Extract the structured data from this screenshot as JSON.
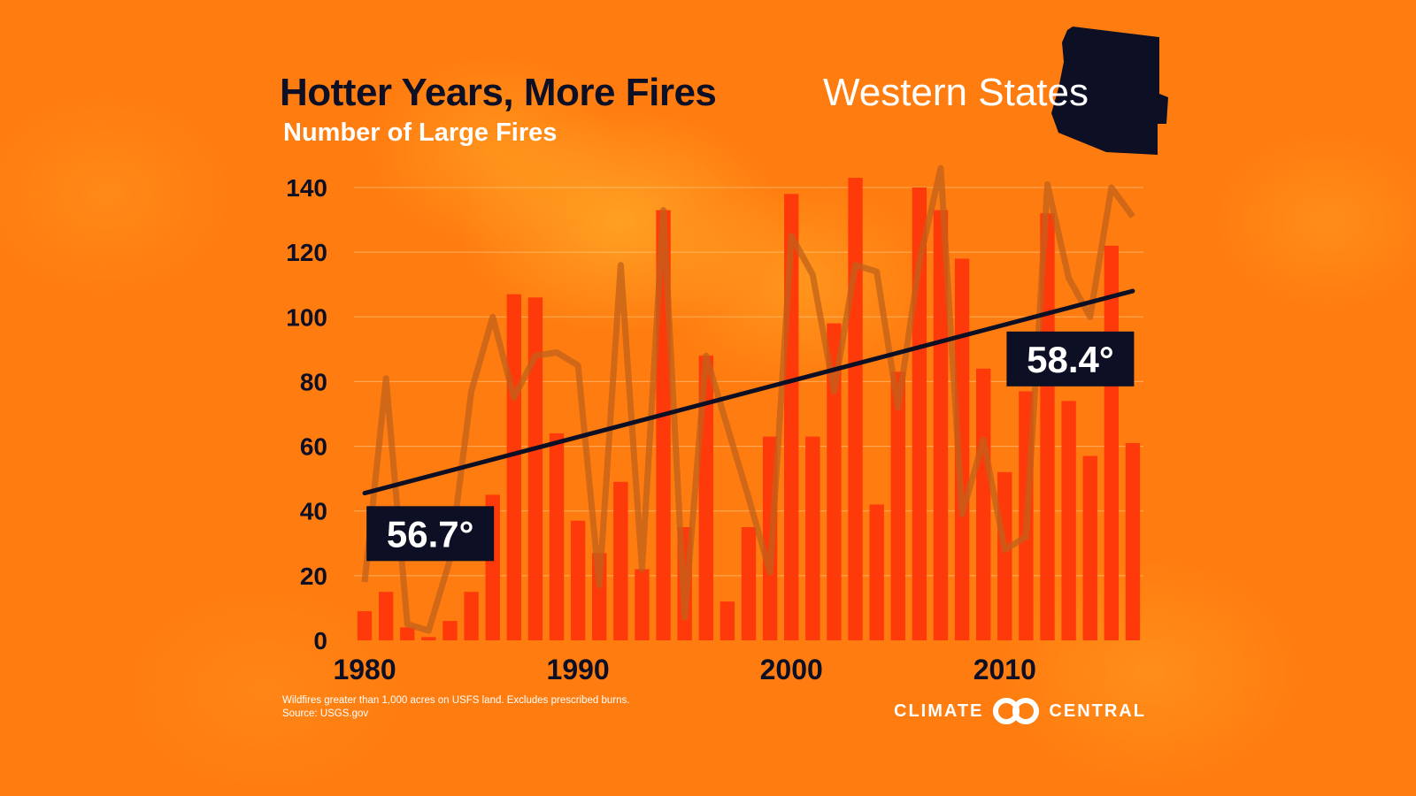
{
  "title": "Hotter Years, More Fires",
  "region": "Western States",
  "subtitle": "Number of Large Fires",
  "footnote": {
    "line1": "Wildfires greater than 1,000 acres on USFS land. Excludes prescribed burns.",
    "line2": "Source: USGS.gov"
  },
  "logo": {
    "left": "CLIMATE",
    "right": "CENTRAL",
    "icon": "double-ring-icon"
  },
  "colors": {
    "background": "#ff7d10",
    "bar": "#ff3a0a",
    "temperature_line": "#c0621a",
    "trend_line": "#0d0f24",
    "text_dark": "#0d0f24",
    "text_light": "#ffffff"
  },
  "chart_data": {
    "type": "bar",
    "title": "Hotter Years, More Fires",
    "subtitle": "Number of Large Fires",
    "x_tick_labels": [
      "1980",
      "1990",
      "2000",
      "2010"
    ],
    "y_ticks": [
      0,
      20,
      40,
      60,
      80,
      100,
      120,
      140
    ],
    "ylim": [
      0,
      140
    ],
    "grid": true,
    "x": [
      1980,
      1981,
      1982,
      1983,
      1984,
      1985,
      1986,
      1987,
      1988,
      1989,
      1990,
      1991,
      1992,
      1993,
      1994,
      1995,
      1996,
      1997,
      1998,
      1999,
      2000,
      2001,
      2002,
      2003,
      2004,
      2005,
      2006,
      2007,
      2008,
      2009,
      2010,
      2011,
      2012,
      2013,
      2014,
      2015,
      2016
    ],
    "series": [
      {
        "type": "bar",
        "values": [
          9,
          15,
          4,
          1,
          6,
          15,
          45,
          107,
          106,
          64,
          37,
          27,
          49,
          22,
          133,
          35,
          88,
          12,
          35,
          63,
          138,
          63,
          98,
          143,
          42,
          83,
          140,
          133,
          118,
          84,
          52,
          77,
          132,
          74,
          57,
          122,
          61
        ]
      },
      {
        "type": "line",
        "values": [
          18,
          81,
          5,
          3,
          25,
          77,
          100,
          75,
          88,
          89,
          85,
          17,
          116,
          22,
          133,
          7,
          88,
          66,
          44,
          21,
          125,
          113,
          77,
          116,
          114,
          72,
          117,
          146,
          39,
          62,
          28,
          32,
          141,
          112,
          100,
          140,
          131
        ]
      },
      {
        "type": "trend",
        "x": [
          1980,
          2016
        ],
        "values": [
          45.5,
          108
        ]
      }
    ],
    "annotations": [
      {
        "text": "56.7°",
        "x": 1981,
        "y": 33
      },
      {
        "text": "58.4°",
        "x": 2011,
        "y": 87
      }
    ]
  }
}
